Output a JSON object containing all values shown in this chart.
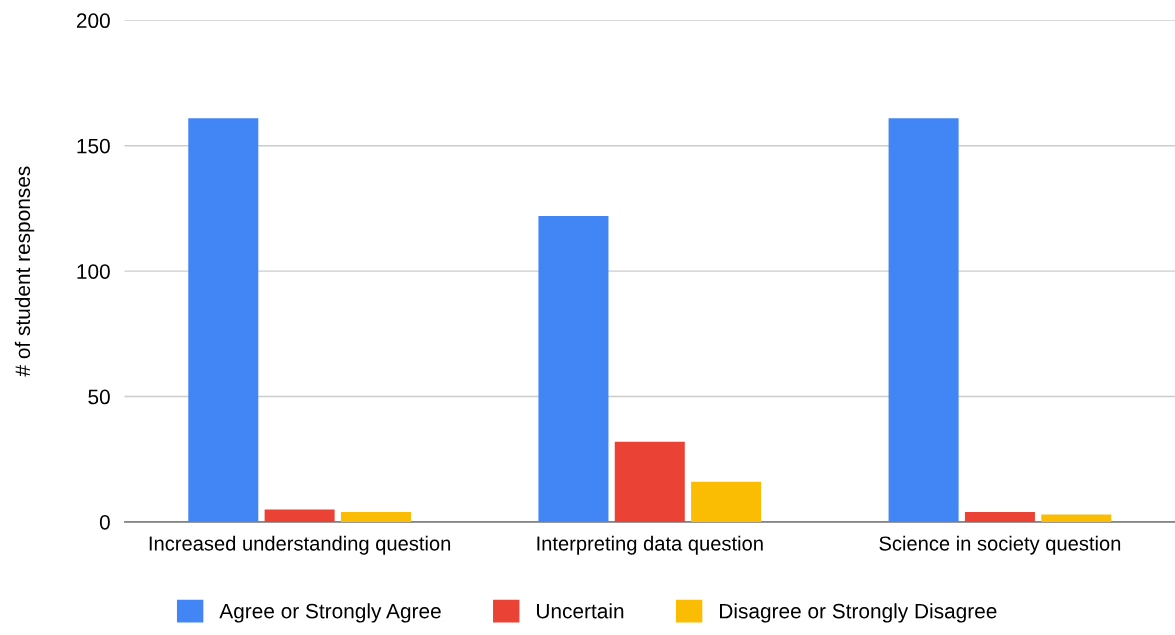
{
  "chart_data": {
    "type": "bar",
    "ylabel": "# of student responses",
    "categories": [
      "Increased understanding question",
      "Interpreting data question",
      "Science in society question"
    ],
    "series": [
      {
        "name": "Agree or Strongly Agree",
        "color": "#4285f4",
        "values": [
          161,
          122,
          161
        ]
      },
      {
        "name": "Uncertain",
        "color": "#ea4335",
        "values": [
          5,
          32,
          4
        ]
      },
      {
        "name": "Disagree or Strongly Disagree",
        "color": "#fbbc04",
        "values": [
          4,
          16,
          3
        ]
      }
    ],
    "ylim": [
      0,
      200
    ],
    "yticks": [
      0,
      50,
      100,
      150,
      200
    ],
    "grid": "y",
    "legend": "bottom"
  }
}
